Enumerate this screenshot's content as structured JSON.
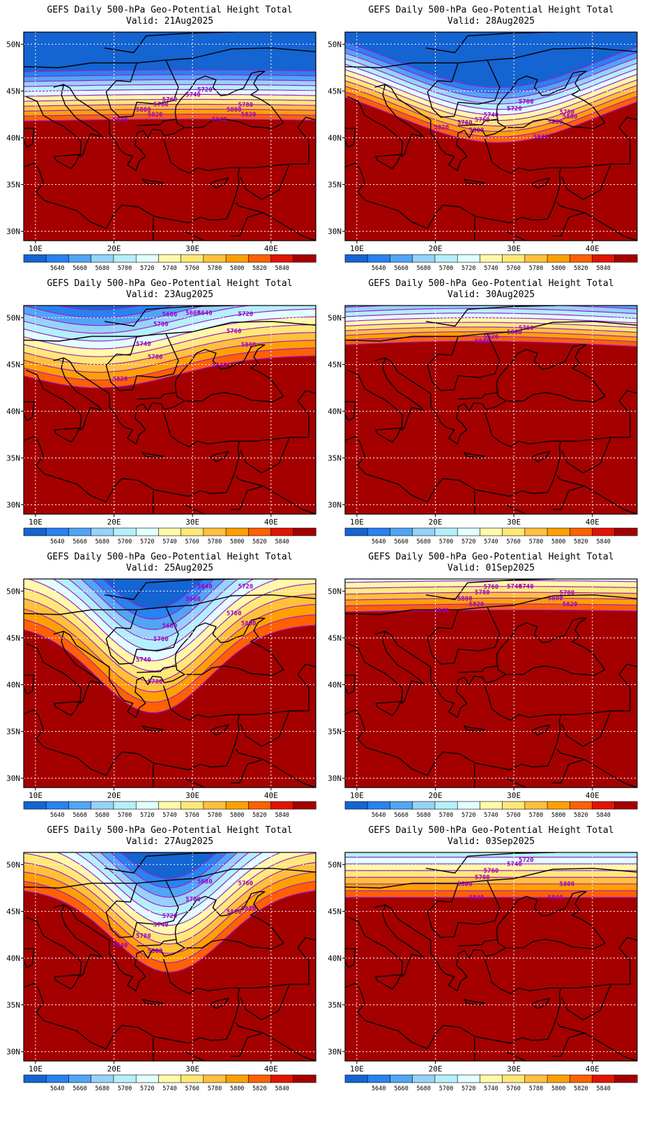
{
  "colors": {
    "band_fills": [
      "#1464d2",
      "#2882f0",
      "#50a5f5",
      "#96d2fa",
      "#b4f0fa",
      "#e1ffff",
      "#fffaaa",
      "#ffe878",
      "#ffc03c",
      "#ffa000",
      "#ff6000",
      "#e11400",
      "#a50000"
    ],
    "contour_line": "#a020c8",
    "contour_label": "#9a00c0",
    "coast": "#000000",
    "grid": "#ffffff"
  },
  "colorbar_labels": [
    "5640",
    "5660",
    "5680",
    "5700",
    "5720",
    "5740",
    "5760",
    "5780",
    "5800",
    "5820",
    "5840"
  ],
  "lat_labels": [
    "50N",
    "45N",
    "40N",
    "35N",
    "30N"
  ],
  "lon_labels": [
    "10E",
    "20E",
    "30E",
    "40E"
  ],
  "panels": [
    {
      "title": "GEFS Daily 500-hPa Geo-Potential Height Total",
      "valid": "Valid: 21Aug2025",
      "contour_labels": [
        "5720",
        "5740",
        "5760",
        "5780",
        "5780",
        "5800",
        "5800",
        "5820",
        "5820",
        "5840",
        "5840"
      ],
      "field": {
        "base": 41.5,
        "amp": 0.5,
        "center": 30,
        "width": 30,
        "northward_gain": 1.9
      }
    },
    {
      "title": "GEFS Daily 500-hPa Geo-Potential Height Total",
      "valid": "Valid: 28Aug2025",
      "contour_labels": [
        "5700",
        "5720",
        "5740",
        "5760",
        "5780",
        "5780",
        "5800",
        "5800",
        "5800",
        "5820",
        "5840"
      ],
      "field": {
        "base": 46.5,
        "amp": -7.0,
        "center": 28,
        "width": 18,
        "northward_gain": 1.7
      }
    },
    {
      "title": "GEFS Daily 500-hPa Geo-Potential Height Total",
      "valid": "Valid: 23Aug2025",
      "contour_labels": [
        "5640",
        "5660",
        "5680",
        "5700",
        "5720",
        "5740",
        "5760",
        "5780",
        "5800",
        "5820",
        "5840"
      ],
      "field": {
        "base": 46.0,
        "amp": -3.5,
        "center": 18,
        "width": 14,
        "northward_gain": 1.2
      }
    },
    {
      "title": "GEFS Daily 500-hPa Geo-Potential Height Total",
      "valid": "Valid: 30Aug2025",
      "contour_labels": [
        "5780",
        "5800",
        "5820",
        "5840"
      ],
      "field": {
        "base": 46.0,
        "amp": 1.5,
        "center": 25,
        "width": 30,
        "northward_gain": 2.0
      }
    },
    {
      "title": "GEFS Daily 500-hPa Geo-Potential Height Total",
      "valid": "Valid: 25Aug2025",
      "contour_labels": [
        "5640",
        "5660",
        "5680",
        "5700",
        "5720",
        "5740",
        "5760",
        "5780",
        "5800"
      ],
      "field": {
        "base": 46.5,
        "amp": -9.5,
        "center": 25,
        "width": 10,
        "northward_gain": 0.9
      }
    },
    {
      "title": "GEFS Daily 500-hPa Geo-Potential Height Total",
      "valid": "Valid: 01Sep2025",
      "contour_labels": [
        "5740",
        "5740",
        "5760",
        "5780",
        "5780",
        "5800",
        "5800",
        "5820",
        "5820",
        "5840"
      ],
      "field": {
        "base": 47.5,
        "amp": 0.5,
        "center": 30,
        "width": 30,
        "northward_gain": 1.6
      }
    },
    {
      "title": "GEFS Daily 500-hPa Geo-Potential Height Total",
      "valid": "Valid: 27Aug2025",
      "contour_labels": [
        "5680",
        "5700",
        "5720",
        "5740",
        "5760",
        "5780",
        "5800",
        "5800",
        "5820",
        "5840"
      ],
      "field": {
        "base": 47.5,
        "amp": -9.0,
        "center": 27,
        "width": 10,
        "northward_gain": 1.0
      }
    },
    {
      "title": "GEFS Daily 500-hPa Geo-Potential Height Total",
      "valid": "Valid: 03Sep2025",
      "contour_labels": [
        "5720",
        "5740",
        "5760",
        "5780",
        "5800",
        "5800",
        "5840",
        "5840"
      ],
      "field": {
        "base": 46.5,
        "amp": 0.0,
        "center": 30,
        "width": 30,
        "northward_gain": 1.4
      }
    }
  ]
}
